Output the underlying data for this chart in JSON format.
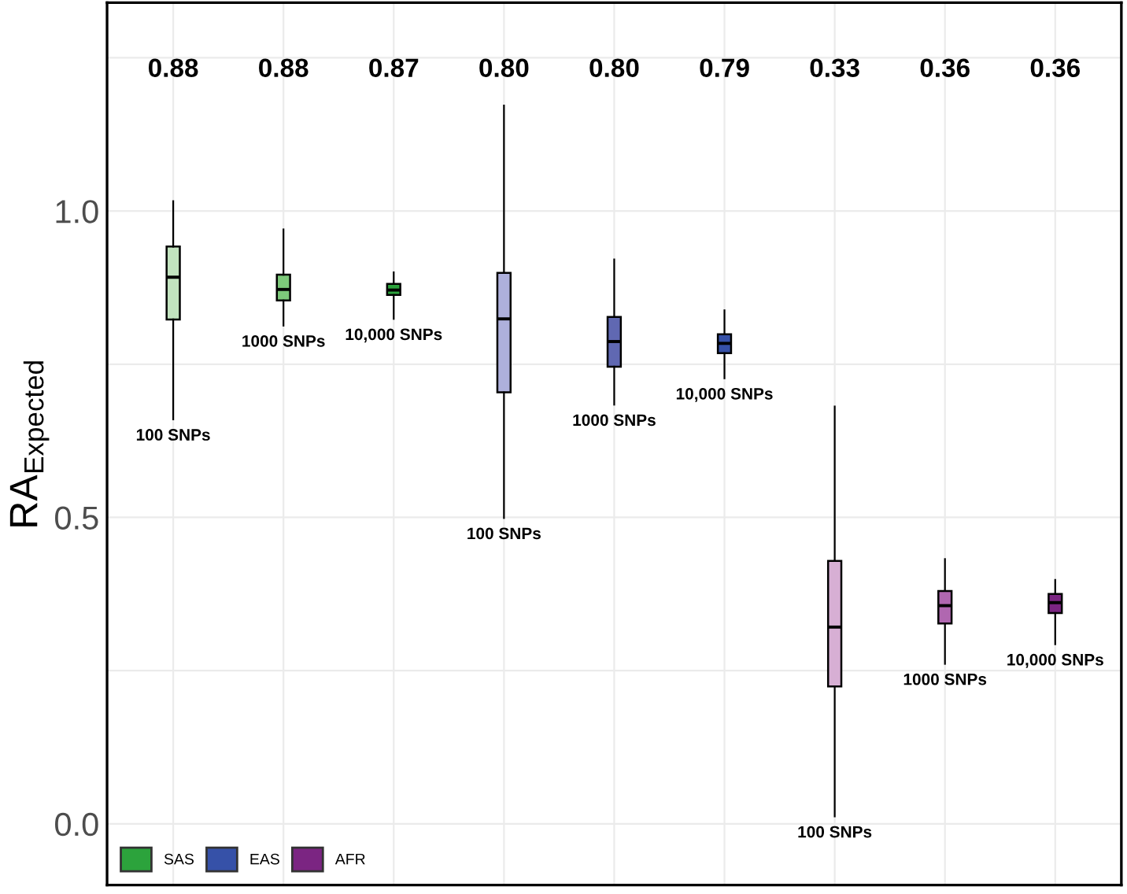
{
  "chart_data": {
    "type": "box",
    "ylabel": "RA$_{Expected}$",
    "categories": [
      null,
      null,
      null,
      null,
      null,
      null,
      null,
      null,
      null
    ],
    "ylim": [
      -0.1,
      1.34
    ],
    "yticks": [
      {
        "value": 0,
        "label": "0.0"
      },
      {
        "value": 0.25,
        "label": null
      },
      {
        "value": 0.5,
        "label": "0.5"
      },
      {
        "value": 0.75,
        "label": null
      },
      {
        "value": 1.0,
        "label": "1.0"
      },
      {
        "value": 1.25,
        "label": null
      }
    ],
    "grid": true,
    "legend": "bottom left",
    "series": [
      {
        "name": "SAS",
        "color": "#2ca33c",
        "colors": [
          "#c2e3bf",
          "#7dc97a",
          "#2ca33c",
          null,
          null,
          null,
          null,
          null,
          null
        ],
        "boxes": [
          {
            "low": 0.66,
            "q1": 0.823,
            "median": 0.892,
            "q3": 0.942,
            "high": 1.016
          },
          {
            "low": 0.813,
            "q1": 0.854,
            "median": 0.872,
            "q3": 0.896,
            "high": 0.97
          },
          {
            "low": 0.824,
            "q1": 0.863,
            "median": 0.871,
            "q3": 0.881,
            "high": 0.9
          },
          null,
          null,
          null,
          null,
          null,
          null
        ]
      },
      {
        "name": "EAS",
        "color": "#3651a8",
        "colors": [
          null,
          null,
          null,
          "#aeb0dc",
          "#6068b2",
          "#3651a8",
          null,
          null,
          null
        ],
        "boxes": [
          null,
          null,
          null,
          {
            "low": 0.499,
            "q1": 0.704,
            "median": 0.824,
            "q3": 0.899,
            "high": 1.172
          },
          {
            "low": 0.684,
            "q1": 0.746,
            "median": 0.787,
            "q3": 0.827,
            "high": 0.921
          },
          {
            "low": 0.727,
            "q1": 0.768,
            "median": 0.784,
            "q3": 0.799,
            "high": 0.838
          },
          null,
          null,
          null
        ]
      },
      {
        "name": "AFR",
        "color": "#7b2582",
        "colors": [
          null,
          null,
          null,
          null,
          null,
          null,
          "#d7afd4",
          "#b067b0",
          "#7b2582"
        ],
        "boxes": [
          null,
          null,
          null,
          null,
          null,
          null,
          {
            "low": 0.012,
            "q1": 0.224,
            "median": 0.321,
            "q3": 0.429,
            "high": 0.681
          },
          {
            "low": 0.261,
            "q1": 0.327,
            "median": 0.356,
            "q3": 0.38,
            "high": 0.432
          },
          {
            "low": 0.293,
            "q1": 0.344,
            "median": 0.361,
            "q3": 0.375,
            "high": 0.398
          }
        ]
      }
    ],
    "annotations": [
      "0.88",
      "0.88",
      "0.87",
      "0.80",
      "0.80",
      "0.79",
      "0.33",
      "0.36",
      "0.36",
      "100 SNPs",
      "1000 SNPs",
      "10,000 SNPs",
      "100 SNPs",
      "1000 SNPs",
      "10,000 SNPs",
      "100 SNPs",
      "1000 SNPs",
      "10,000 SNPs"
    ]
  }
}
